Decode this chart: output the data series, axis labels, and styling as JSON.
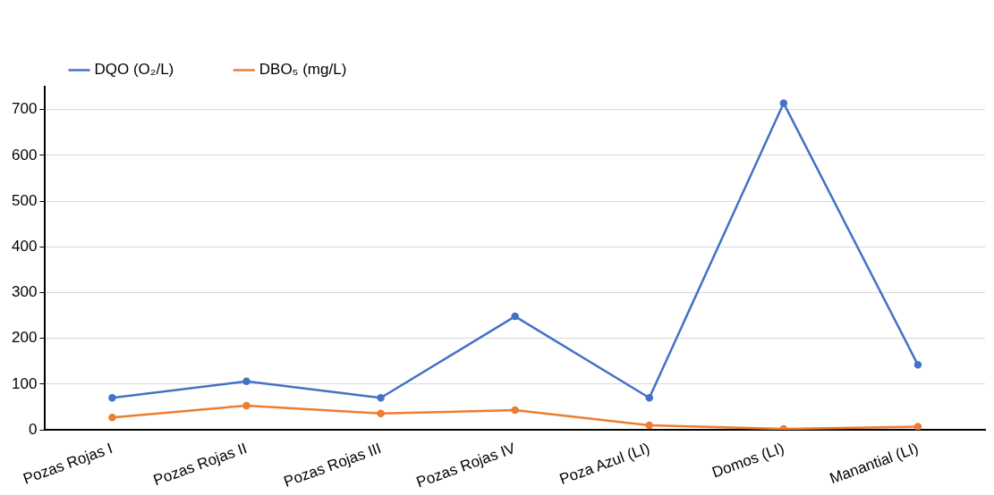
{
  "chart_data": {
    "type": "line",
    "categories": [
      "Pozas Rojas I",
      "Pozas Rojas II",
      "Pozas Rojas III",
      "Pozas Rojas IV",
      "Poza Azul (LI)",
      "Domos (LI)",
      "Manantial (LI)"
    ],
    "series": [
      {
        "name": "DQO (O₂/L)",
        "color": "#4472c4",
        "values": [
          70,
          106,
          70,
          248,
          70,
          714,
          142
        ]
      },
      {
        "name": "DBO₅ (mg/L)",
        "color": "#ed7d31",
        "values": [
          27,
          53,
          36,
          43,
          10,
          2,
          7
        ]
      }
    ],
    "ylim": [
      0,
      750
    ],
    "yticks": [
      0,
      100,
      200,
      300,
      400,
      500,
      600,
      700
    ],
    "grid": "y",
    "legend": "top left",
    "marker": "circle",
    "line_style": "solid"
  }
}
